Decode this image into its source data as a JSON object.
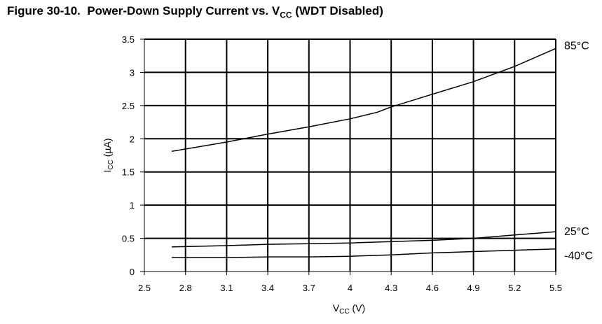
{
  "figure": {
    "label": "Figure 30-10.",
    "title_main": "Power-Down Supply Current vs. V",
    "title_sub": "CC",
    "title_suffix": " (WDT Disabled)"
  },
  "chart_data": {
    "type": "line",
    "xlabel_main": "V",
    "xlabel_sub": "CC",
    "xlabel_unit": " (V)",
    "ylabel_main": "I",
    "ylabel_sub": "CC",
    "ylabel_unit": " (µA)",
    "xlim": [
      2.5,
      5.5
    ],
    "ylim": [
      0,
      3.5
    ],
    "x_ticks": [
      "2.5",
      "2.8",
      "3.1",
      "3.4",
      "3.7",
      "4",
      "4.3",
      "4.6",
      "4.9",
      "5.2",
      "5.5"
    ],
    "y_ticks": [
      "0",
      "0.5",
      "1",
      "1.5",
      "2",
      "2.5",
      "3",
      "3.5"
    ],
    "grid": true,
    "series": [
      {
        "name": "85°C",
        "x": [
          2.7,
          3.1,
          3.4,
          3.7,
          4.0,
          4.2,
          4.3,
          4.6,
          4.9,
          5.2,
          5.5
        ],
        "y": [
          1.81,
          1.95,
          2.07,
          2.18,
          2.3,
          2.4,
          2.48,
          2.67,
          2.86,
          3.09,
          3.36
        ]
      },
      {
        "name": "25°C",
        "x": [
          2.7,
          3.1,
          3.4,
          3.7,
          4.0,
          4.3,
          4.6,
          4.9,
          5.2,
          5.5
        ],
        "y": [
          0.37,
          0.39,
          0.41,
          0.42,
          0.43,
          0.45,
          0.47,
          0.5,
          0.55,
          0.6
        ]
      },
      {
        "name": "-40°C",
        "x": [
          2.7,
          3.1,
          3.4,
          3.7,
          4.0,
          4.3,
          4.6,
          4.9,
          5.2,
          5.5
        ],
        "y": [
          0.21,
          0.21,
          0.22,
          0.22,
          0.23,
          0.25,
          0.28,
          0.3,
          0.32,
          0.34
        ]
      }
    ]
  }
}
